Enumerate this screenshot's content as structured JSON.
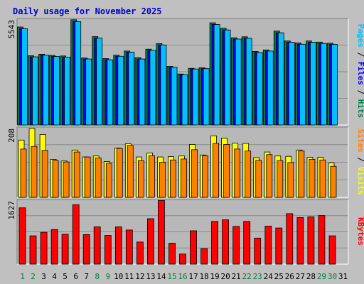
{
  "title": "Daily usage for November 2025",
  "colors": {
    "background": "#c0c0c0",
    "panel": "#b8b8b8",
    "gridline": "#8c8c8c",
    "title": "#0000cc",
    "hits": "#008040",
    "files": "#0000ff",
    "pages": "#00c0ff",
    "visits": "#ffff00",
    "sites": "#ff8000",
    "kbytes": "#ff0000",
    "weekday_label": "#000000",
    "weekend_label": "#008040"
  },
  "right_labels": {
    "hits": "Hits",
    "files": "Files",
    "pages": "Pages",
    "visits": "Visits",
    "sites": "Sites",
    "kbytes": "KBytes",
    "separator": " / "
  },
  "chart_data": [
    {
      "type": "bar",
      "name": "hits-files-pages",
      "ymax_label": "5543",
      "ylim": [
        0,
        5543
      ],
      "categories": [
        "1",
        "2",
        "3",
        "4",
        "5",
        "6",
        "7",
        "8",
        "9",
        "10",
        "11",
        "12",
        "13",
        "14",
        "15",
        "16",
        "17",
        "18",
        "19",
        "20",
        "21",
        "22",
        "23",
        "24",
        "25",
        "26",
        "27",
        "28",
        "29",
        "30",
        "31"
      ],
      "weekend_days": [
        "1",
        "2",
        "8",
        "9",
        "15",
        "16",
        "22",
        "23",
        "29",
        "30"
      ],
      "series": [
        {
          "name": "Hits",
          "color": "#008040",
          "values": [
            5170,
            3650,
            3730,
            3670,
            3640,
            5550,
            3530,
            4660,
            3500,
            3680,
            3900,
            3550,
            4000,
            4290,
            3090,
            2690,
            2990,
            3020,
            5390,
            5100,
            4600,
            4650,
            3880,
            3960,
            4950,
            4430,
            4330,
            4430,
            4370,
            4310,
            0
          ]
        },
        {
          "name": "Files",
          "color": "#0000ff",
          "values": [
            5080,
            3590,
            3680,
            3610,
            3580,
            5450,
            3480,
            4580,
            3440,
            3620,
            3840,
            3480,
            3940,
            4220,
            3040,
            2660,
            2950,
            2970,
            5300,
            5010,
            4530,
            4570,
            3820,
            3900,
            4860,
            4360,
            4260,
            4360,
            4300,
            4250,
            0
          ]
        },
        {
          "name": "Pages",
          "color": "#00c0ff",
          "values": [
            5080,
            3590,
            3680,
            3610,
            3580,
            5450,
            3480,
            4580,
            3440,
            3620,
            3840,
            3480,
            3940,
            4220,
            3040,
            2660,
            2950,
            2970,
            5300,
            5010,
            4530,
            4570,
            3820,
            3900,
            4860,
            4360,
            4260,
            4360,
            4300,
            4250,
            0
          ]
        }
      ]
    },
    {
      "type": "bar",
      "name": "visits-sites",
      "ymax_label": "208",
      "ylim": [
        0,
        208
      ],
      "series": [
        {
          "name": "Visits",
          "color": "#ffff00",
          "values": [
            173,
            208,
            190,
            115,
            110,
            143,
            122,
            125,
            108,
            149,
            162,
            122,
            134,
            122,
            123,
            125,
            160,
            128,
            186,
            179,
            164,
            163,
            120,
            137,
            125,
            124,
            143,
            121,
            121,
            104,
            0
          ]
        },
        {
          "name": "Sites",
          "color": "#ff8000",
          "values": [
            146,
            154,
            142,
            112,
            107,
            137,
            122,
            119,
            103,
            148,
            157,
            111,
            126,
            106,
            113,
            116,
            144,
            126,
            163,
            160,
            146,
            140,
            112,
            129,
            111,
            105,
            140,
            115,
            113,
            94,
            0
          ]
        }
      ]
    },
    {
      "type": "bar",
      "name": "kbytes",
      "ymax_label": "1627",
      "ylim": [
        0,
        1627
      ],
      "series": [
        {
          "name": "KBytes",
          "color": "#ff0000",
          "values": [
            1450,
            730,
            820,
            890,
            770,
            1530,
            760,
            960,
            740,
            960,
            880,
            570,
            1170,
            1640,
            540,
            260,
            860,
            400,
            1100,
            1140,
            970,
            1100,
            670,
            980,
            930,
            1300,
            1200,
            1220,
            1250,
            730,
            0
          ]
        }
      ]
    }
  ]
}
